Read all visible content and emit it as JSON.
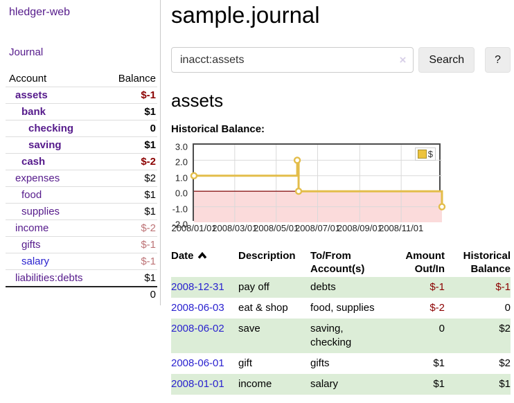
{
  "sidebar": {
    "brand": "hledger-web",
    "nav": {
      "journal": "Journal"
    },
    "accounts_table": {
      "header": {
        "account": "Account",
        "balance": "Balance"
      },
      "rows": [
        {
          "name": "assets",
          "depth": 1,
          "bold": true,
          "link_color": "purple",
          "balance": "$-1",
          "balance_class": "neg-strong"
        },
        {
          "name": "bank",
          "depth": 2,
          "bold": true,
          "link_color": "purple",
          "balance": "$1",
          "balance_class": "plain"
        },
        {
          "name": "checking",
          "depth": 3,
          "bold": true,
          "link_color": "purple",
          "balance": "0",
          "balance_class": "plain"
        },
        {
          "name": "saving",
          "depth": 3,
          "bold": true,
          "link_color": "purple",
          "balance": "$1",
          "balance_class": "plain"
        },
        {
          "name": "cash",
          "depth": 2,
          "bold": true,
          "link_color": "purple",
          "balance": "$-2",
          "balance_class": "neg-strong"
        },
        {
          "name": "expenses",
          "depth": 1,
          "bold": false,
          "link_color": "purple",
          "balance": "$2",
          "balance_class": "plain"
        },
        {
          "name": "food",
          "depth": 2,
          "bold": false,
          "link_color": "purple",
          "balance": "$1",
          "balance_class": "plain"
        },
        {
          "name": "supplies",
          "depth": 2,
          "bold": false,
          "link_color": "purple",
          "balance": "$1",
          "balance_class": "plain"
        },
        {
          "name": "income",
          "depth": 1,
          "bold": false,
          "link_color": "purple",
          "balance": "$-2",
          "balance_class": "neg-soft"
        },
        {
          "name": "gifts",
          "depth": 2,
          "bold": false,
          "link_color": "purple",
          "balance": "$-1",
          "balance_class": "neg-soft"
        },
        {
          "name": "salary",
          "depth": 2,
          "bold": false,
          "link_color": "blue",
          "balance": "$-1",
          "balance_class": "neg-soft"
        },
        {
          "name": "liabilities:debts",
          "depth": 1,
          "bold": false,
          "link_color": "purple",
          "balance": "$1",
          "balance_class": "plain"
        }
      ],
      "total": "0"
    }
  },
  "header": {
    "title": "sample.journal"
  },
  "search": {
    "value": "inacct:assets",
    "clear_icon": "×",
    "search_button": "Search",
    "help_button": "?"
  },
  "account_page": {
    "heading": "assets",
    "chart_label": "Historical Balance:"
  },
  "chart_data": {
    "type": "line",
    "title": "Historical Balance",
    "x_unit": "days from 2008-01-01",
    "xlim": [
      0,
      365
    ],
    "ylim": [
      -2,
      3
    ],
    "yticks": [
      "3.0",
      "2.0",
      "1.0",
      "0.0",
      "-1.0",
      "-2.0"
    ],
    "ytick_values": [
      3,
      2,
      1,
      0,
      -1,
      -2
    ],
    "xticks": [
      {
        "label": "2008/01/01",
        "day": 0
      },
      {
        "label": "2008/03/01",
        "day": 60
      },
      {
        "label": "2008/05/01",
        "day": 121
      },
      {
        "label": "2008/07/01",
        "day": 182
      },
      {
        "label": "2008/09/01",
        "day": 244
      },
      {
        "label": "2008/11/01",
        "day": 305
      }
    ],
    "series": [
      {
        "name": "$",
        "color": "#e3bd4a",
        "points": [
          [
            0,
            1
          ],
          [
            152,
            1
          ],
          [
            152,
            2
          ],
          [
            154,
            2
          ],
          [
            154,
            0
          ],
          [
            365,
            0
          ],
          [
            365,
            -1
          ]
        ],
        "markers": [
          [
            0,
            1
          ],
          [
            152,
            2
          ],
          [
            154,
            0
          ],
          [
            365,
            -1
          ]
        ]
      }
    ],
    "legend": {
      "label": "$",
      "swatch_color": "#edc33c",
      "position": "top-right"
    },
    "grid": true,
    "gridline_color": "#d9d9d9",
    "negative_region_color": "#fbdbdb",
    "zero_line_color": "#8b1a1a"
  },
  "register_table": {
    "headers": {
      "date": "Date",
      "description": "Description",
      "accounts": "To/From Account(s)",
      "amount": "Amount Out/In",
      "balance": "Historical Balance"
    },
    "rows": [
      {
        "date": "2008-12-31",
        "description": "pay off",
        "accounts": "debts",
        "amount": "$-1",
        "balance": "$-1"
      },
      {
        "date": "2008-06-03",
        "description": "eat & shop",
        "accounts": "food, supplies",
        "amount": "$-2",
        "balance": "0"
      },
      {
        "date": "2008-06-02",
        "description": "save",
        "accounts": "saving,\nchecking",
        "amount": "0",
        "balance": "$2"
      },
      {
        "date": "2008-06-01",
        "description": "gift",
        "accounts": "gifts",
        "amount": "$1",
        "balance": "$2"
      },
      {
        "date": "2008-01-01",
        "description": "income",
        "accounts": "salary",
        "amount": "$1",
        "balance": "$1"
      }
    ]
  }
}
